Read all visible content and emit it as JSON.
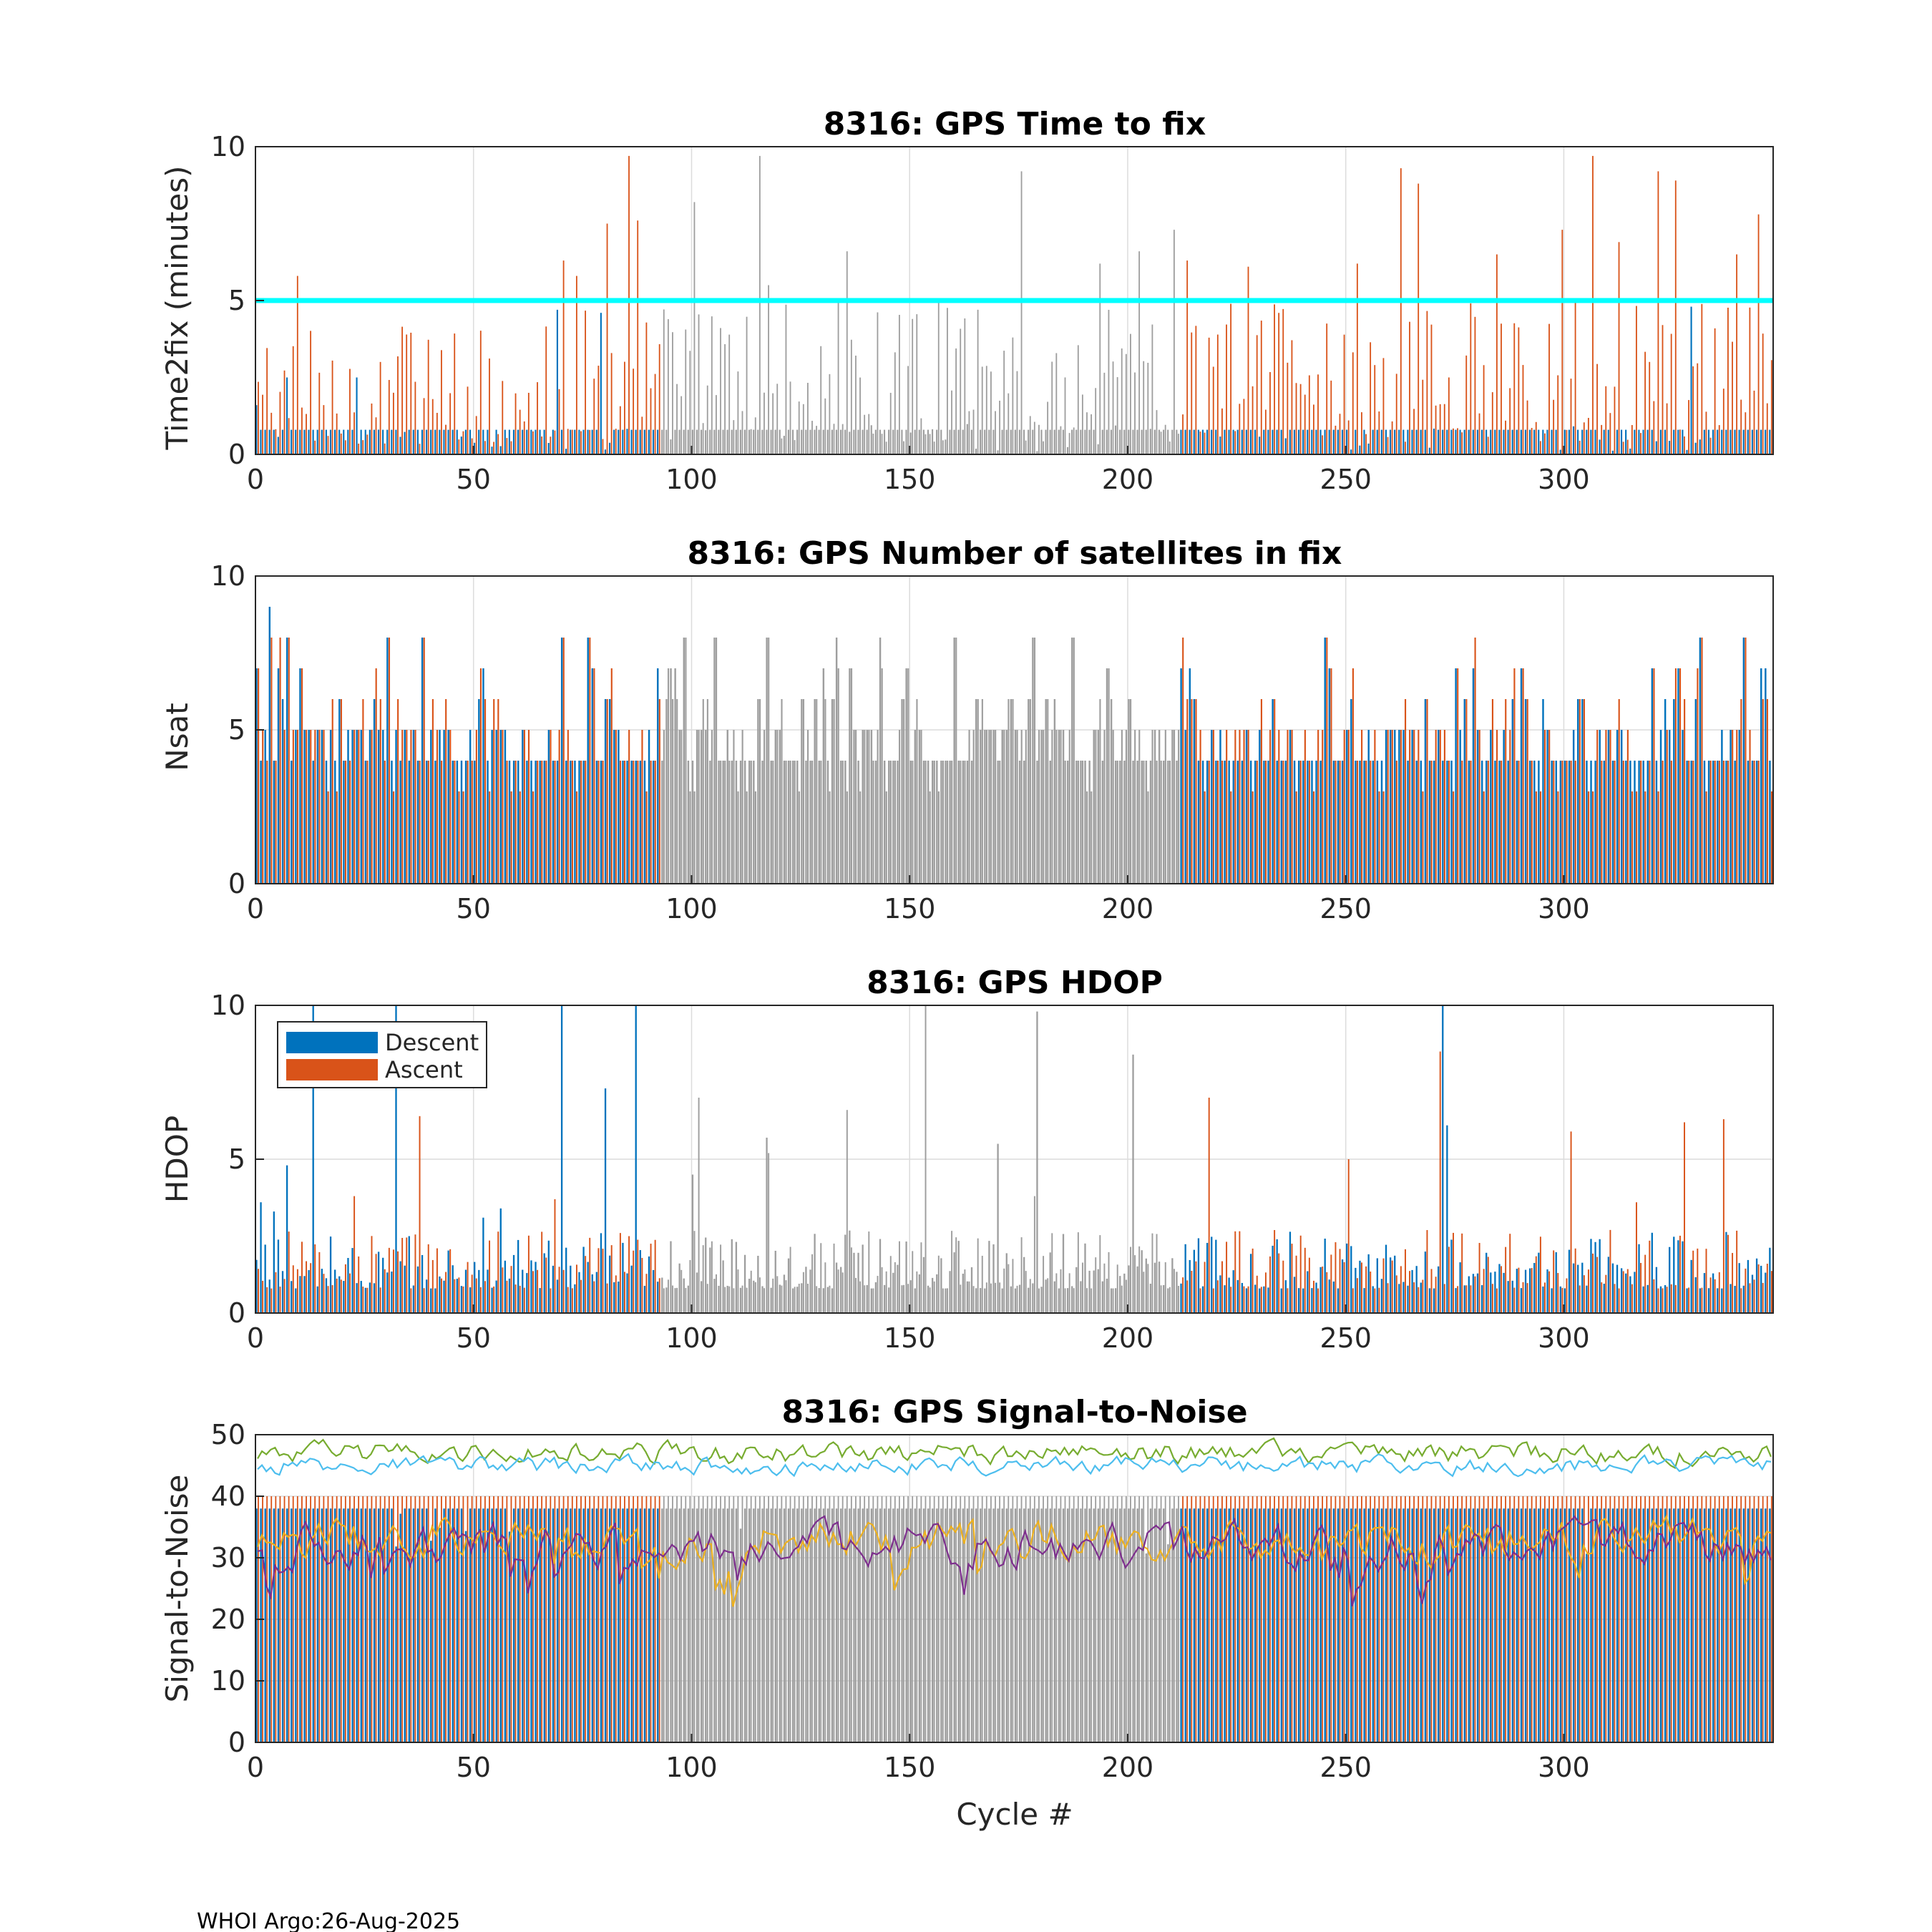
{
  "footer": "WHOI Argo:26-Aug-2025",
  "colors": {
    "descent": "#0072BD",
    "ascent": "#D95319",
    "gray_bars": "#9E9E9E",
    "threshold": "#00FFFF",
    "snr_lines": [
      "#4DBEEE",
      "#77AC30",
      "#EDB120",
      "#7E2F8E",
      "#0072BD",
      "#D95319"
    ]
  },
  "chart_data": [
    {
      "type": "bar",
      "title": "8316: GPS Time to fix",
      "xlabel": "",
      "ylabel": "Time2fix (minutes)",
      "xlim": [
        0,
        348
      ],
      "ylim": [
        0,
        10
      ],
      "xticks": [
        "0",
        "50",
        "100",
        "150",
        "200",
        "250",
        "300"
      ],
      "yticks": [
        "0",
        "5",
        "10"
      ],
      "cycles": "0-347",
      "threshold_line": 5,
      "series": [
        {
          "name": "Descent",
          "color": "#0072BD",
          "typical": 0.8,
          "notable": [
            [
              0,
              1.6
            ],
            [
              7,
              2.5
            ],
            [
              23,
              2.5
            ],
            [
              69,
              4.7
            ],
            [
              79,
              4.6
            ],
            [
              329,
              4.8
            ]
          ]
        },
        {
          "name": "Ascent",
          "color": "#D95319",
          "typical_range": [
            0.5,
            5
          ],
          "notable": [
            [
              9,
              5.8
            ],
            [
              70,
              6.3
            ],
            [
              73,
              5.8
            ],
            [
              80,
              7.5
            ],
            [
              85,
              9.7
            ],
            [
              87,
              7.6
            ],
            [
              100,
              8.2
            ],
            [
              115,
              9.7
            ],
            [
              117,
              5.5
            ],
            [
              135,
              6.6
            ],
            [
              175,
              9.2
            ],
            [
              193,
              6.2
            ],
            [
              202,
              6.6
            ],
            [
              210,
              7.3
            ],
            [
              213,
              6.3
            ],
            [
              227,
              6.1
            ],
            [
              252,
              6.2
            ],
            [
              262,
              9.3
            ],
            [
              266,
              8.8
            ],
            [
              284,
              6.5
            ],
            [
              299,
              7.3
            ],
            [
              306,
              9.7
            ],
            [
              312,
              6.9
            ],
            [
              321,
              9.2
            ],
            [
              325,
              8.9
            ],
            [
              339,
              6.5
            ],
            [
              344,
              7.8
            ]
          ]
        }
      ],
      "gray_region": [
        93,
        212
      ]
    },
    {
      "type": "bar",
      "title": "8316: GPS Number of satellites in fix",
      "xlabel": "",
      "ylabel": "Nsat",
      "xlim": [
        0,
        348
      ],
      "ylim": [
        0,
        10
      ],
      "xticks": [
        "0",
        "50",
        "100",
        "150",
        "200",
        "250",
        "300"
      ],
      "yticks": [
        "0",
        "5",
        "10"
      ],
      "typical_range": [
        4,
        8
      ],
      "notable": [
        [
          3,
          9
        ],
        [
          7,
          8
        ],
        [
          30,
          8
        ],
        [
          38,
          8
        ],
        [
          70,
          8
        ],
        [
          76,
          8
        ],
        [
          92,
          7
        ],
        [
          98,
          8
        ],
        [
          105,
          8
        ],
        [
          117,
          8
        ],
        [
          133,
          8
        ],
        [
          143,
          8
        ],
        [
          160,
          8
        ],
        [
          178,
          8
        ],
        [
          187,
          8
        ],
        [
          245,
          8
        ],
        [
          246,
          7
        ],
        [
          275,
          7
        ],
        [
          290,
          7
        ],
        [
          331,
          8
        ],
        [
          341,
          8
        ],
        [
          345,
          7
        ]
      ],
      "gray_region": [
        93,
        212
      ]
    },
    {
      "type": "bar",
      "title": "8316: GPS HDOP",
      "xlabel": "",
      "ylabel": "HDOP",
      "xlim": [
        0,
        348
      ],
      "ylim": [
        0,
        10
      ],
      "xticks": [
        "0",
        "50",
        "100",
        "150",
        "200",
        "250",
        "300"
      ],
      "yticks": [
        "0",
        "5",
        "10"
      ],
      "legend": {
        "position": "top-left",
        "entries": [
          "Descent",
          "Ascent"
        ]
      },
      "series": [
        {
          "name": "Descent",
          "color": "#0072BD",
          "typical_range": [
            0.8,
            2.5
          ],
          "notable": [
            [
              1,
              3.6
            ],
            [
              4,
              3.3
            ],
            [
              7,
              4.8
            ],
            [
              13,
              10
            ],
            [
              32,
              10
            ],
            [
              35,
              2.5
            ],
            [
              52,
              3.1
            ],
            [
              56,
              3.4
            ],
            [
              70,
              10
            ],
            [
              80,
              7.3
            ],
            [
              87,
              10
            ],
            [
              100,
              4.5
            ],
            [
              117,
              5.7
            ],
            [
              170,
              5.5
            ],
            [
              179,
              9.8
            ],
            [
              201,
              8.4
            ],
            [
              272,
              10
            ],
            [
              273,
              6.1
            ]
          ]
        },
        {
          "name": "Ascent",
          "color": "#D95319",
          "typical_range": [
            0.8,
            2.5
          ],
          "notable": [
            [
              22,
              3.8
            ],
            [
              37,
              6.4
            ],
            [
              68,
              3.7
            ],
            [
              101,
              7.0
            ],
            [
              117,
              5.2
            ],
            [
              135,
              6.6
            ],
            [
              153,
              10
            ],
            [
              178,
              3.8
            ],
            [
              218,
              7.0
            ],
            [
              250,
              5.0
            ],
            [
              271,
              8.5
            ],
            [
              301,
              5.9
            ],
            [
              316,
              3.6
            ],
            [
              327,
              6.2
            ],
            [
              336,
              6.3
            ]
          ]
        }
      ],
      "gray_region": [
        93,
        212
      ]
    },
    {
      "type": "line",
      "title": "8316: GPS Signal-to-Noise",
      "xlabel": "Cycle #",
      "ylabel": "Signal-to-Noise",
      "xlim": [
        0,
        348
      ],
      "ylim": [
        0,
        50
      ],
      "xticks": [
        "0",
        "50",
        "100",
        "150",
        "200",
        "250",
        "300"
      ],
      "yticks": [
        "0",
        "10",
        "20",
        "30",
        "40",
        "50"
      ],
      "bars": {
        "descent_level": 38,
        "ascent_level": 40,
        "gray_region": [
          93,
          212
        ]
      },
      "series": [
        {
          "name": "SNR max",
          "color": "#77AC30",
          "mean": 47,
          "amplitude": 3
        },
        {
          "name": "SNR 2nd",
          "color": "#4DBEEE",
          "mean": 45,
          "amplitude": 2.5
        },
        {
          "name": "SNR 3rd",
          "color": "#EDB120",
          "mean": 33,
          "amplitude": 6
        },
        {
          "name": "SNR 4th",
          "color": "#7E2F8E",
          "mean": 32,
          "amplitude": 6
        }
      ]
    }
  ]
}
